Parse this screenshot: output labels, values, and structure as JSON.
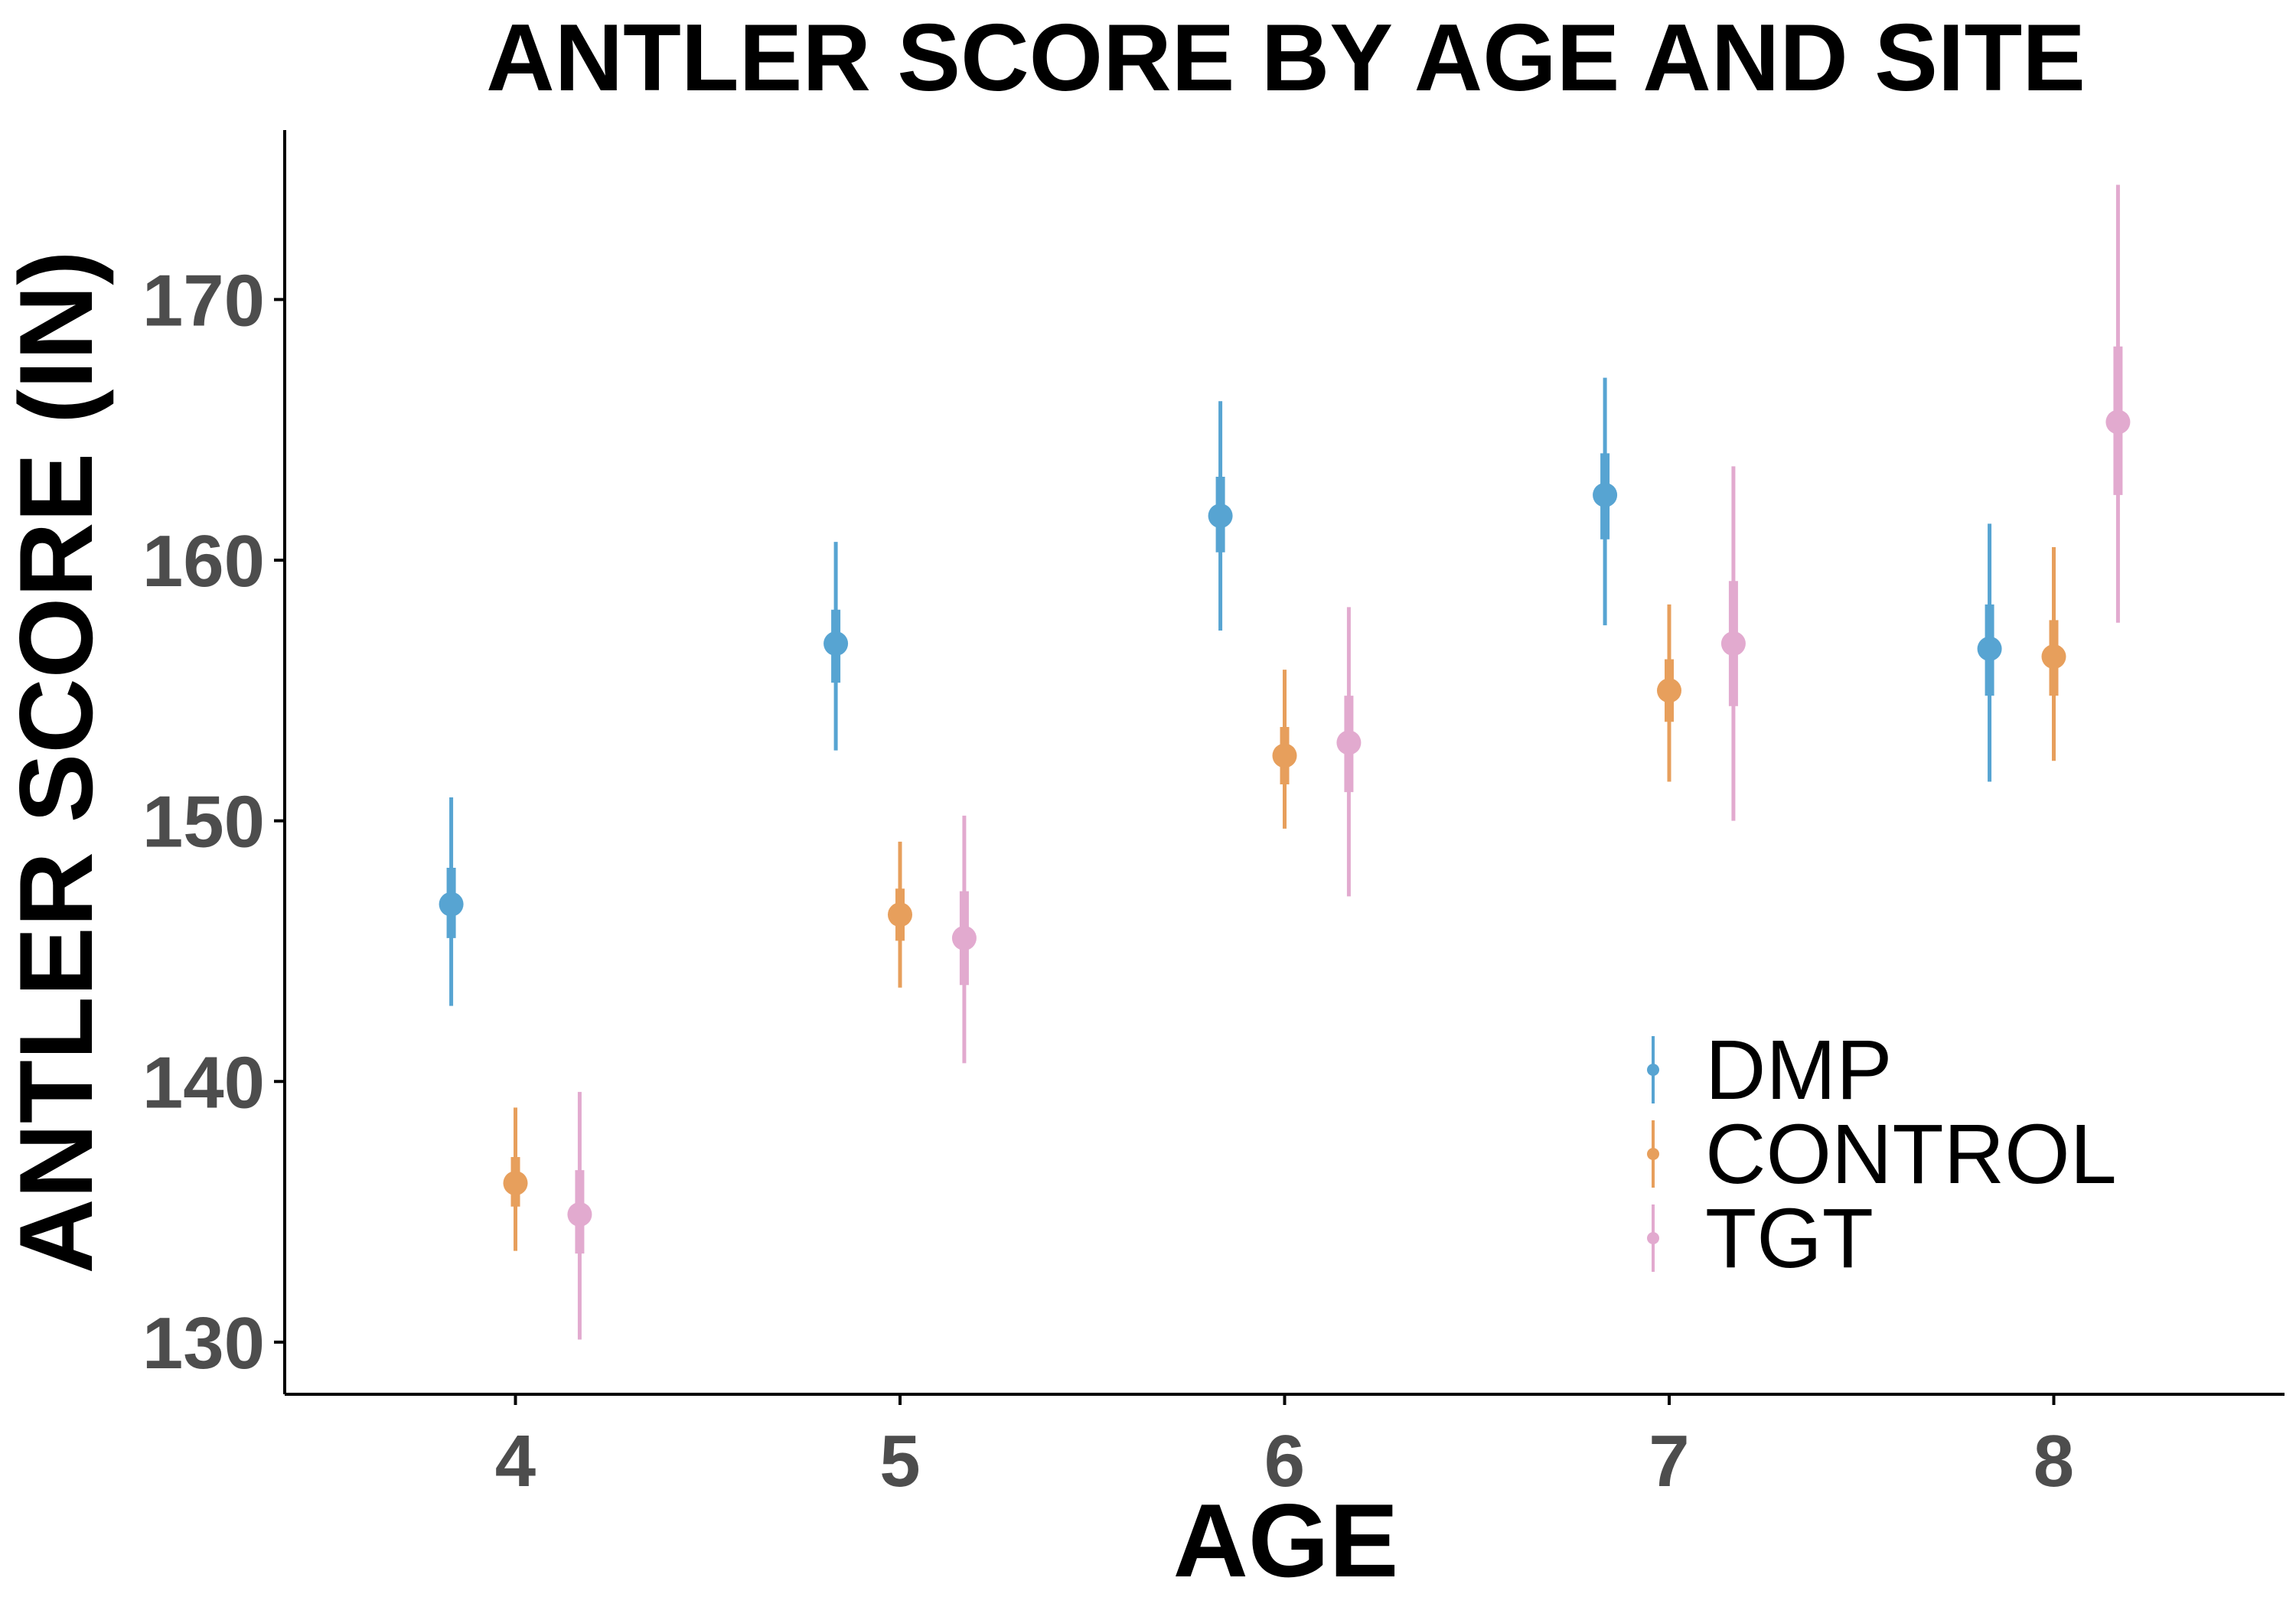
{
  "chart_data": {
    "type": "scatter",
    "title": "ANTLER SCORE BY AGE AND SITE",
    "xlabel": "AGE",
    "ylabel": "ANTLER SCORE (IN)",
    "categories": [
      "4",
      "5",
      "6",
      "7",
      "8"
    ],
    "x_dodge": [
      -0.167,
      0,
      0.167
    ],
    "xlim": [
      3.4,
      8.6
    ],
    "ylim": [
      128,
      176.5
    ],
    "yticks": [
      130,
      140,
      150,
      160,
      170
    ],
    "grid": false,
    "legend_position": "bottom-right",
    "series": [
      {
        "name": "DMP",
        "color": "#1f86c4",
        "mean": [
          146.8,
          156.8,
          161.7,
          162.5,
          156.6
        ],
        "inner": [
          [
            145.5,
            148.2
          ],
          [
            155.3,
            158.1
          ],
          [
            160.3,
            163.2
          ],
          [
            160.8,
            164.1
          ],
          [
            154.8,
            158.3
          ]
        ],
        "outer": [
          [
            142.9,
            150.9
          ],
          [
            152.7,
            160.7
          ],
          [
            157.3,
            166.1
          ],
          [
            157.5,
            167.0
          ],
          [
            151.5,
            161.4
          ]
        ]
      },
      {
        "name": "CONTROL",
        "color": "#e07f26",
        "mean": [
          136.1,
          146.4,
          152.5,
          155.0,
          156.3
        ],
        "inner": [
          [
            135.2,
            137.1
          ],
          [
            145.4,
            147.4
          ],
          [
            151.4,
            153.6
          ],
          [
            153.8,
            156.2
          ],
          [
            154.8,
            157.7
          ]
        ],
        "outer": [
          [
            133.5,
            139.0
          ],
          [
            143.6,
            149.2
          ],
          [
            149.7,
            155.8
          ],
          [
            151.5,
            158.3
          ],
          [
            152.3,
            160.5
          ]
        ]
      },
      {
        "name": "TGT",
        "color": "#d98ec0",
        "mean": [
          134.9,
          145.5,
          153.0,
          156.8,
          165.3
        ],
        "inner": [
          [
            133.4,
            136.6
          ],
          [
            143.7,
            147.3
          ],
          [
            151.1,
            154.8
          ],
          [
            154.4,
            159.2
          ],
          [
            162.5,
            168.2
          ]
        ],
        "outer": [
          [
            130.1,
            139.6
          ],
          [
            140.7,
            150.2
          ],
          [
            147.1,
            158.2
          ],
          [
            150.0,
            163.6
          ],
          [
            157.6,
            174.4
          ]
        ]
      }
    ]
  }
}
